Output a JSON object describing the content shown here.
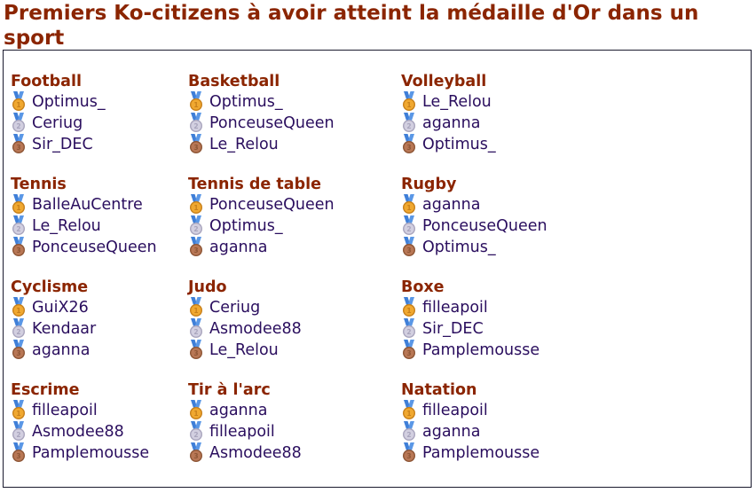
{
  "title": "Premiers Ko-citizens à avoir atteint la médaille d'Or dans un sport",
  "sports": [
    {
      "name": "Football",
      "medals": [
        "Optimus_",
        "Ceriug",
        "Sir_DEC"
      ]
    },
    {
      "name": "Basketball",
      "medals": [
        "Optimus_",
        "PonceuseQueen",
        "Le_Relou"
      ]
    },
    {
      "name": "Volleyball",
      "medals": [
        "Le_Relou",
        "aganna",
        "Optimus_"
      ]
    },
    {
      "name": "Tennis",
      "medals": [
        "BalleAuCentre",
        "Le_Relou",
        "PonceuseQueen"
      ]
    },
    {
      "name": "Tennis de table",
      "medals": [
        "PonceuseQueen",
        "Optimus_",
        "aganna"
      ]
    },
    {
      "name": "Rugby",
      "medals": [
        "aganna",
        "PonceuseQueen",
        "Optimus_"
      ]
    },
    {
      "name": "Cyclisme",
      "medals": [
        "GuiX26",
        "Kendaar",
        "aganna"
      ]
    },
    {
      "name": "Judo",
      "medals": [
        "Ceriug",
        "Asmodee88",
        "Le_Relou"
      ]
    },
    {
      "name": "Boxe",
      "medals": [
        "filleapoil",
        "Sir_DEC",
        "Pamplemousse"
      ]
    },
    {
      "name": "Escrime",
      "medals": [
        "filleapoil",
        "Asmodee88",
        "Pamplemousse"
      ]
    },
    {
      "name": "Tir à l'arc",
      "medals": [
        "aganna",
        "filleapoil",
        "Asmodee88"
      ]
    },
    {
      "name": "Natation",
      "medals": [
        "filleapoil",
        "aganna",
        "Pamplemousse"
      ]
    }
  ],
  "medal_styles": [
    {
      "name": "gold-medal-icon",
      "place": "1",
      "disc": "#f0a830",
      "rim": "#c8801a",
      "ribbon": "#3f7fd8"
    },
    {
      "name": "silver-medal-icon",
      "place": "2",
      "disc": "#d2cfe0",
      "rim": "#a9a5bd",
      "ribbon": "#3f7fd8"
    },
    {
      "name": "bronze-medal-icon",
      "place": "3",
      "disc": "#b87755",
      "rim": "#8d5535",
      "ribbon": "#3f7fd8"
    }
  ]
}
